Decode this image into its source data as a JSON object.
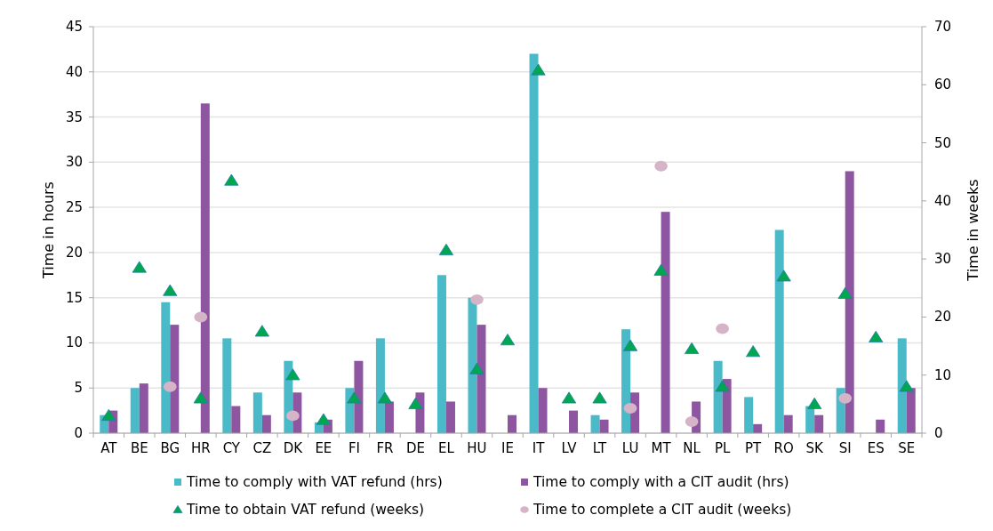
{
  "chart_data": {
    "type": "bar",
    "categories": [
      "AT",
      "BE",
      "BG",
      "HR",
      "CY",
      "CZ",
      "DK",
      "EE",
      "FI",
      "FR",
      "DE",
      "EL",
      "HU",
      "IE",
      "IT",
      "LV",
      "LT",
      "LU",
      "MT",
      "NL",
      "PL",
      "PT",
      "RO",
      "SK",
      "SI",
      "ES",
      "SE"
    ],
    "ylabel": "Time in hours",
    "y2label": "Time in weeks",
    "ylim": [
      0,
      45
    ],
    "yticks": [
      0,
      5,
      10,
      15,
      20,
      25,
      30,
      35,
      40,
      45
    ],
    "y2lim": [
      0,
      70
    ],
    "y2ticks": [
      0,
      10,
      20,
      30,
      40,
      50,
      60,
      70
    ],
    "grid": "y",
    "legend": "bottom",
    "series": [
      {
        "name": "Time to comply with VAT refund (hrs)",
        "color": "#4bbac8",
        "values": [
          2,
          5,
          14.5,
          null,
          10.5,
          4.5,
          8,
          1.2,
          5,
          10.5,
          null,
          17.5,
          15,
          null,
          42,
          null,
          2,
          11.5,
          null,
          null,
          8,
          4,
          22.5,
          3,
          5,
          null,
          10.5
        ]
      },
      {
        "name": "Time to comply with a CIT audit (hrs)",
        "color": "#8e56a0",
        "values": [
          2.5,
          5.5,
          12,
          36.5,
          3,
          2,
          4.5,
          1.5,
          8,
          3.5,
          4.5,
          3.5,
          12,
          2,
          5,
          2.5,
          1.5,
          4.5,
          24.5,
          3.5,
          6,
          1,
          2,
          2,
          29,
          1.5,
          5
        ]
      },
      {
        "name": "Time to obtain VAT refund (weeks)",
        "type": "scatter",
        "axis": "y2",
        "marker": "triangle",
        "color": "#00a650",
        "values": [
          3,
          28.5,
          24.5,
          6,
          43.5,
          17.5,
          10,
          2.3,
          6,
          6,
          5,
          31.5,
          11,
          16,
          62.5,
          6,
          6,
          15,
          28,
          14.5,
          8,
          14,
          27,
          5,
          24,
          16.5,
          8
        ]
      },
      {
        "name": "Time to complete a CIT audit (weeks)",
        "type": "scatter",
        "axis": "y2",
        "marker": "circle",
        "color": "#d6b4c8",
        "values": [
          null,
          null,
          8,
          20,
          null,
          null,
          3,
          null,
          null,
          null,
          null,
          null,
          23,
          null,
          null,
          null,
          null,
          4.3,
          46,
          2,
          18,
          null,
          null,
          null,
          6,
          null,
          null
        ]
      }
    ]
  }
}
